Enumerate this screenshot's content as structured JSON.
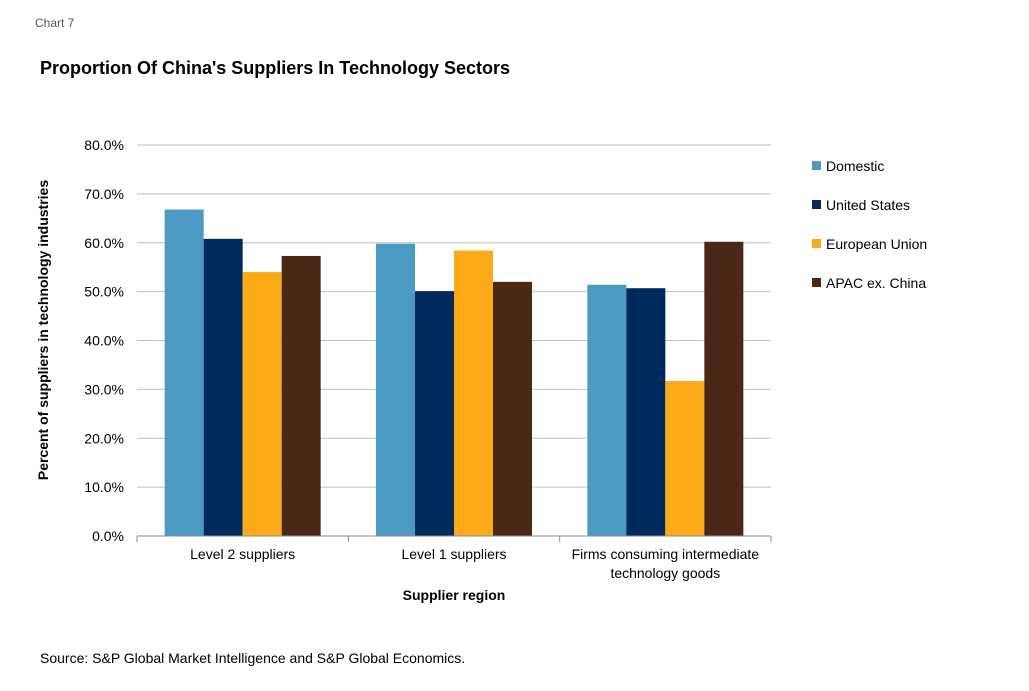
{
  "chart_label": "Chart 7",
  "title": "Proportion Of China's Suppliers In Technology Sectors",
  "source": "Source: S&P Global Market Intelligence and S&P Global Economics.",
  "chart_data": {
    "type": "bar",
    "title": "Proportion Of China's Suppliers In Technology Sectors",
    "xlabel": "Supplier region",
    "ylabel": "Percent of suppliers in technology industries",
    "ylim": [
      0,
      80
    ],
    "yticks": [
      "0.0%",
      "10.0%",
      "20.0%",
      "30.0%",
      "40.0%",
      "50.0%",
      "60.0%",
      "70.0%",
      "80.0%"
    ],
    "grid": true,
    "legend_position": "right",
    "categories": [
      [
        "Level 2 suppliers"
      ],
      [
        "Level 1 suppliers"
      ],
      [
        "Firms consuming intermediate",
        "technology goods"
      ]
    ],
    "series": [
      {
        "name": "Domestic",
        "color": "#4a9ac4",
        "values": [
          66.8,
          59.8,
          51.4
        ]
      },
      {
        "name": "United States",
        "color": "#002a5c",
        "values": [
          60.8,
          50.1,
          50.7
        ]
      },
      {
        "name": "European Union",
        "color": "#fdaa19",
        "values": [
          54.0,
          58.4,
          31.7
        ]
      },
      {
        "name": "APAC ex. China",
        "color": "#4a2716",
        "values": [
          57.3,
          52.0,
          60.2
        ]
      }
    ]
  }
}
